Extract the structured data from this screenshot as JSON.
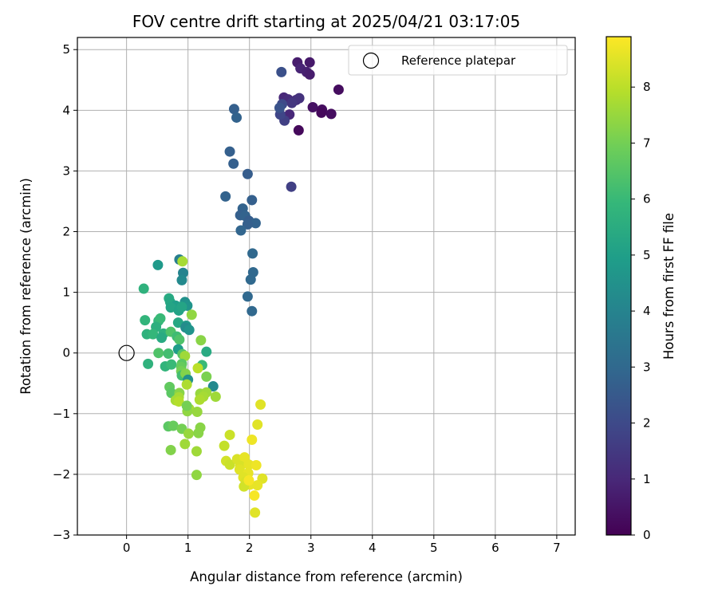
{
  "chart_data": {
    "type": "scatter",
    "title": "FOV centre drift starting at 2025/04/21 03:17:05",
    "xlabel": "Angular distance from reference (arcmin)",
    "ylabel": "Rotation from reference (arcmin)",
    "xlim": [
      -0.8,
      7.3
    ],
    "ylim": [
      -3,
      5.2
    ],
    "xticks": [
      "0",
      "1",
      "2",
      "3",
      "4",
      "5",
      "6",
      "7"
    ],
    "yticks": [
      "−3",
      "−2",
      "−1",
      "0",
      "1",
      "2",
      "3",
      "4",
      "5"
    ],
    "grid": true,
    "legend": {
      "placement": "top-right",
      "entries": [
        "Reference platepar"
      ]
    },
    "reference_point": {
      "x": 0,
      "y": 0
    },
    "colorbar": {
      "label": "Hours from first FF file",
      "range": [
        0,
        8.9
      ],
      "ticks": [
        "0",
        "1",
        "2",
        "3",
        "4",
        "5",
        "6",
        "7",
        "8"
      ],
      "colormap": "viridis"
    },
    "points": [
      {
        "x": 2.78,
        "y": 4.79,
        "c": 0.7
      },
      {
        "x": 2.98,
        "y": 4.79,
        "c": 0.6
      },
      {
        "x": 2.83,
        "y": 4.69,
        "c": 0.9
      },
      {
        "x": 2.93,
        "y": 4.63,
        "c": 0.8
      },
      {
        "x": 2.98,
        "y": 4.59,
        "c": 0.7
      },
      {
        "x": 3.45,
        "y": 4.34,
        "c": 0.3
      },
      {
        "x": 2.56,
        "y": 4.21,
        "c": 1.0
      },
      {
        "x": 2.63,
        "y": 4.18,
        "c": 1.1
      },
      {
        "x": 2.76,
        "y": 4.17,
        "c": 1.2
      },
      {
        "x": 2.81,
        "y": 4.2,
        "c": 1.3
      },
      {
        "x": 2.69,
        "y": 4.12,
        "c": 1.4
      },
      {
        "x": 3.03,
        "y": 4.05,
        "c": 0.4
      },
      {
        "x": 3.18,
        "y": 4.01,
        "c": 0.3
      },
      {
        "x": 3.33,
        "y": 3.94,
        "c": 0.3
      },
      {
        "x": 3.17,
        "y": 3.96,
        "c": 0.2
      },
      {
        "x": 2.65,
        "y": 3.93,
        "c": 1.0
      },
      {
        "x": 2.57,
        "y": 3.83,
        "c": 1.7
      },
      {
        "x": 2.5,
        "y": 3.93,
        "c": 1.9
      },
      {
        "x": 2.8,
        "y": 3.67,
        "c": 0.2
      },
      {
        "x": 2.52,
        "y": 4.63,
        "c": 2.2
      },
      {
        "x": 2.53,
        "y": 4.1,
        "c": 2.0
      },
      {
        "x": 2.49,
        "y": 4.04,
        "c": 2.3
      },
      {
        "x": 2.68,
        "y": 2.74,
        "c": 1.7
      },
      {
        "x": 1.75,
        "y": 4.02,
        "c": 2.7
      },
      {
        "x": 1.79,
        "y": 3.88,
        "c": 2.8
      },
      {
        "x": 1.68,
        "y": 3.32,
        "c": 2.7
      },
      {
        "x": 1.74,
        "y": 3.12,
        "c": 2.7
      },
      {
        "x": 1.97,
        "y": 2.95,
        "c": 2.6
      },
      {
        "x": 1.61,
        "y": 2.58,
        "c": 2.8
      },
      {
        "x": 2.04,
        "y": 2.52,
        "c": 2.7
      },
      {
        "x": 1.89,
        "y": 2.38,
        "c": 2.8
      },
      {
        "x": 1.85,
        "y": 2.27,
        "c": 2.7
      },
      {
        "x": 1.93,
        "y": 2.26,
        "c": 2.8
      },
      {
        "x": 1.99,
        "y": 2.18,
        "c": 2.6
      },
      {
        "x": 2.1,
        "y": 2.14,
        "c": 2.8
      },
      {
        "x": 1.97,
        "y": 2.12,
        "c": 2.7
      },
      {
        "x": 1.86,
        "y": 2.02,
        "c": 2.9
      },
      {
        "x": 2.05,
        "y": 1.64,
        "c": 3.0
      },
      {
        "x": 2.06,
        "y": 1.33,
        "c": 3.0
      },
      {
        "x": 2.02,
        "y": 1.21,
        "c": 3.0
      },
      {
        "x": 1.97,
        "y": 0.93,
        "c": 3.0
      },
      {
        "x": 2.04,
        "y": 0.69,
        "c": 3.0
      },
      {
        "x": 0.86,
        "y": 1.54,
        "c": 3.8
      },
      {
        "x": 0.92,
        "y": 1.32,
        "c": 4.0
      },
      {
        "x": 0.9,
        "y": 1.2,
        "c": 4.2
      },
      {
        "x": 0.51,
        "y": 1.45,
        "c": 4.8
      },
      {
        "x": 0.28,
        "y": 1.06,
        "c": 5.7
      },
      {
        "x": 0.69,
        "y": 0.9,
        "c": 5.4
      },
      {
        "x": 0.71,
        "y": 0.84,
        "c": 5.3
      },
      {
        "x": 0.8,
        "y": 0.78,
        "c": 5.0
      },
      {
        "x": 0.95,
        "y": 0.84,
        "c": 4.5
      },
      {
        "x": 0.99,
        "y": 0.78,
        "c": 4.6
      },
      {
        "x": 0.72,
        "y": 0.75,
        "c": 5.2
      },
      {
        "x": 0.85,
        "y": 0.7,
        "c": 5.1
      },
      {
        "x": 0.9,
        "y": 0.76,
        "c": 5.2
      },
      {
        "x": 0.3,
        "y": 0.54,
        "c": 5.8
      },
      {
        "x": 0.52,
        "y": 0.53,
        "c": 5.9
      },
      {
        "x": 0.55,
        "y": 0.57,
        "c": 6.0
      },
      {
        "x": 0.48,
        "y": 0.43,
        "c": 5.6
      },
      {
        "x": 0.84,
        "y": 0.5,
        "c": 5.3
      },
      {
        "x": 0.97,
        "y": 0.45,
        "c": 4.8
      },
      {
        "x": 0.96,
        "y": 0.42,
        "c": 4.3
      },
      {
        "x": 1.02,
        "y": 0.38,
        "c": 4.6
      },
      {
        "x": 0.33,
        "y": 0.31,
        "c": 5.7
      },
      {
        "x": 0.43,
        "y": 0.31,
        "c": 5.9
      },
      {
        "x": 0.6,
        "y": 0.32,
        "c": 5.6
      },
      {
        "x": 0.72,
        "y": 0.35,
        "c": 6.4
      },
      {
        "x": 0.57,
        "y": 0.25,
        "c": 5.4
      },
      {
        "x": 0.82,
        "y": 0.27,
        "c": 6.1
      },
      {
        "x": 0.86,
        "y": 0.22,
        "c": 6.4
      },
      {
        "x": 0.84,
        "y": 0.06,
        "c": 4.9
      },
      {
        "x": 1.06,
        "y": 0.63,
        "c": 7.4
      },
      {
        "x": 0.91,
        "y": 1.51,
        "c": 7.7
      },
      {
        "x": 0.52,
        "y": 0.0,
        "c": 6.4
      },
      {
        "x": 0.68,
        "y": -0.01,
        "c": 6.2
      },
      {
        "x": 0.91,
        "y": -0.02,
        "c": 6.5
      },
      {
        "x": 0.95,
        "y": -0.05,
        "c": 7.6
      },
      {
        "x": 1.3,
        "y": 0.02,
        "c": 5.4
      },
      {
        "x": 1.21,
        "y": 0.21,
        "c": 7.3
      },
      {
        "x": 0.35,
        "y": -0.18,
        "c": 5.7
      },
      {
        "x": 0.63,
        "y": -0.22,
        "c": 5.8
      },
      {
        "x": 0.73,
        "y": -0.19,
        "c": 6.0
      },
      {
        "x": 0.9,
        "y": -0.18,
        "c": 6.6
      },
      {
        "x": 0.89,
        "y": -0.23,
        "c": 6.8
      },
      {
        "x": 1.23,
        "y": -0.2,
        "c": 6.0
      },
      {
        "x": 1.16,
        "y": -0.25,
        "c": 8.0
      },
      {
        "x": 0.89,
        "y": -0.3,
        "c": 7.0
      },
      {
        "x": 0.9,
        "y": -0.37,
        "c": 6.2
      },
      {
        "x": 0.96,
        "y": -0.34,
        "c": 7.2
      },
      {
        "x": 1.3,
        "y": -0.39,
        "c": 7.1
      },
      {
        "x": 1.0,
        "y": -0.44,
        "c": 4.5
      },
      {
        "x": 0.98,
        "y": -0.52,
        "c": 7.8
      },
      {
        "x": 1.41,
        "y": -0.55,
        "c": 4.2
      },
      {
        "x": 0.7,
        "y": -0.56,
        "c": 6.7
      },
      {
        "x": 0.73,
        "y": -0.66,
        "c": 6.6
      },
      {
        "x": 0.86,
        "y": -0.66,
        "c": 7.3
      },
      {
        "x": 1.2,
        "y": -0.67,
        "c": 7.5
      },
      {
        "x": 1.3,
        "y": -0.65,
        "c": 7.6
      },
      {
        "x": 1.25,
        "y": -0.72,
        "c": 7.7
      },
      {
        "x": 1.45,
        "y": -0.72,
        "c": 7.6
      },
      {
        "x": 0.85,
        "y": -0.73,
        "c": 7.7
      },
      {
        "x": 0.8,
        "y": -0.78,
        "c": 7.7
      },
      {
        "x": 0.85,
        "y": -0.8,
        "c": 7.9
      },
      {
        "x": 1.19,
        "y": -0.77,
        "c": 7.8
      },
      {
        "x": 1.02,
        "y": -0.92,
        "c": 7.7
      },
      {
        "x": 0.99,
        "y": -0.96,
        "c": 7.4
      },
      {
        "x": 1.15,
        "y": -0.97,
        "c": 7.5
      },
      {
        "x": 0.98,
        "y": -0.87,
        "c": 7.0
      },
      {
        "x": 2.18,
        "y": -0.85,
        "c": 8.5
      },
      {
        "x": 0.68,
        "y": -1.21,
        "c": 6.6
      },
      {
        "x": 0.76,
        "y": -1.2,
        "c": 6.8
      },
      {
        "x": 0.9,
        "y": -1.25,
        "c": 7.0
      },
      {
        "x": 1.2,
        "y": -1.23,
        "c": 7.3
      },
      {
        "x": 1.01,
        "y": -1.33,
        "c": 7.5
      },
      {
        "x": 1.17,
        "y": -1.32,
        "c": 7.3
      },
      {
        "x": 0.95,
        "y": -1.5,
        "c": 7.6
      },
      {
        "x": 0.72,
        "y": -1.6,
        "c": 7.2
      },
      {
        "x": 1.14,
        "y": -1.62,
        "c": 7.6
      },
      {
        "x": 1.14,
        "y": -2.01,
        "c": 7.4
      },
      {
        "x": 1.68,
        "y": -1.35,
        "c": 8.2
      },
      {
        "x": 2.13,
        "y": -1.18,
        "c": 8.5
      },
      {
        "x": 2.04,
        "y": -1.43,
        "c": 8.7
      },
      {
        "x": 1.59,
        "y": -1.53,
        "c": 8.1
      },
      {
        "x": 1.62,
        "y": -1.78,
        "c": 8.3
      },
      {
        "x": 1.68,
        "y": -1.84,
        "c": 8.2
      },
      {
        "x": 1.8,
        "y": -1.75,
        "c": 8.4
      },
      {
        "x": 1.92,
        "y": -1.72,
        "c": 8.6
      },
      {
        "x": 1.85,
        "y": -1.86,
        "c": 8.4
      },
      {
        "x": 1.84,
        "y": -1.92,
        "c": 8.5
      },
      {
        "x": 1.99,
        "y": -1.84,
        "c": 8.6
      },
      {
        "x": 2.11,
        "y": -1.85,
        "c": 8.7
      },
      {
        "x": 1.98,
        "y": -1.98,
        "c": 8.6
      },
      {
        "x": 1.9,
        "y": -2.05,
        "c": 8.5
      },
      {
        "x": 2.21,
        "y": -2.07,
        "c": 8.5
      },
      {
        "x": 1.94,
        "y": -2.12,
        "c": 8.4
      },
      {
        "x": 2.01,
        "y": -2.17,
        "c": 8.6
      },
      {
        "x": 1.91,
        "y": -2.2,
        "c": 8.3
      },
      {
        "x": 2.13,
        "y": -2.18,
        "c": 8.6
      },
      {
        "x": 2.08,
        "y": -2.35,
        "c": 8.8
      },
      {
        "x": 2.09,
        "y": -2.63,
        "c": 8.5
      },
      {
        "x": 1.99,
        "y": -2.1,
        "c": 8.8
      }
    ]
  }
}
